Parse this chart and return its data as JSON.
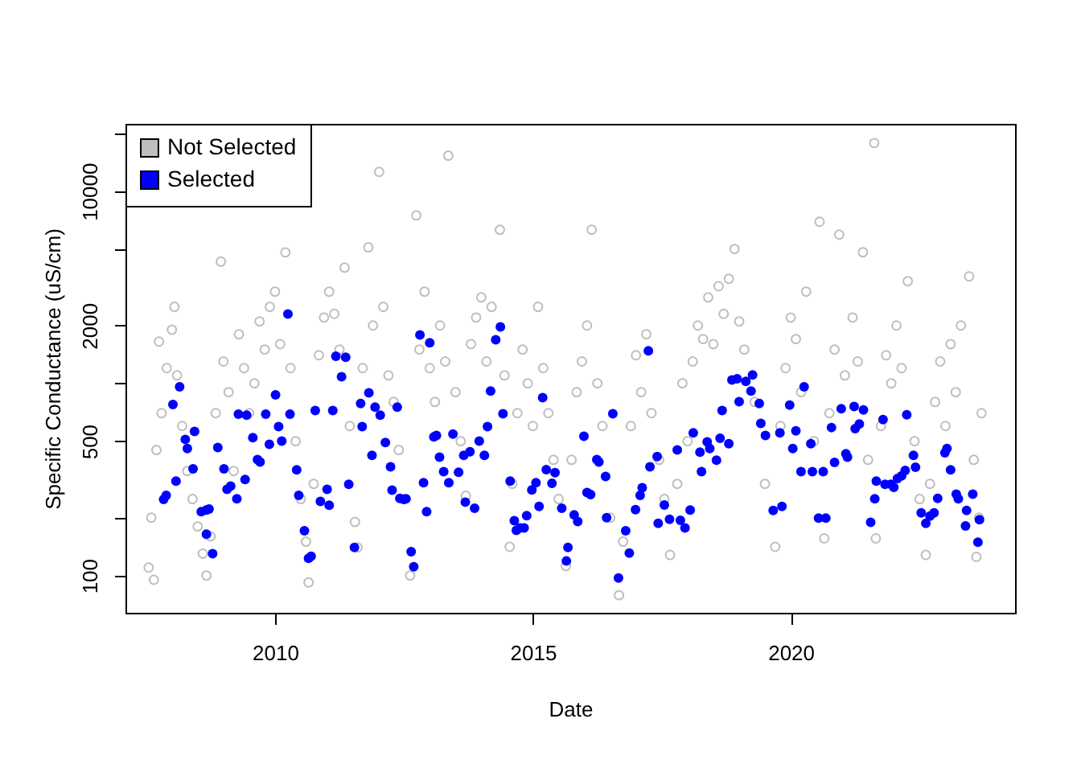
{
  "chart_data": {
    "type": "scatter",
    "xlabel": "Date",
    "ylabel": "Specific Conductance (uS/cm)",
    "log": "y",
    "xlim": [
      2007.1,
      2024.35
    ],
    "xticks": [
      2010,
      2015,
      2020
    ],
    "ylim": [
      64,
      22400
    ],
    "yticks": [
      100,
      {
        "value": 200,
        "label": null
      },
      500,
      {
        "value": 1000,
        "label": null
      },
      2000,
      {
        "value": 5000,
        "label": null
      },
      10000,
      {
        "value": 20000,
        "label": null
      }
    ],
    "grid": false,
    "legend": "top left",
    "marker": "circle",
    "series": [
      {
        "name": "Not Selected",
        "color": "#bebebe",
        "x": [
          2007.55,
          2007.6,
          2007.65,
          2007.7,
          2007.75,
          2007.8,
          2007.9,
          2008.0,
          2008.05,
          2008.1,
          2008.2,
          2008.3,
          2008.4,
          2008.5,
          2008.6,
          2008.67,
          2008.75,
          2008.85,
          2008.95,
          2009.0,
          2009.1,
          2009.2,
          2009.3,
          2009.4,
          2009.5,
          2009.6,
          2009.7,
          2009.8,
          2009.9,
          2010.0,
          2010.1,
          2010.2,
          2010.3,
          2010.4,
          2010.5,
          2010.6,
          2010.65,
          2010.75,
          2010.85,
          2010.95,
          2011.05,
          2011.15,
          2011.25,
          2011.35,
          2011.45,
          2011.55,
          2011.6,
          2011.7,
          2011.81,
          2011.9,
          2012.02,
          2012.1,
          2012.2,
          2012.3,
          2012.4,
          2012.5,
          2012.62,
          2012.74,
          2012.8,
          2012.9,
          2013.0,
          2013.1,
          2013.2,
          2013.3,
          2013.36,
          2013.5,
          2013.6,
          2013.7,
          2013.8,
          2013.9,
          2014.0,
          2014.1,
          2014.2,
          2014.36,
          2014.45,
          2014.55,
          2014.6,
          2014.7,
          2014.8,
          2014.9,
          2015.0,
          2015.1,
          2015.2,
          2015.3,
          2015.4,
          2015.5,
          2015.64,
          2015.75,
          2015.85,
          2015.95,
          2016.05,
          2016.14,
          2016.25,
          2016.35,
          2016.5,
          2016.67,
          2016.75,
          2016.9,
          2017.0,
          2017.1,
          2017.2,
          2017.3,
          2017.45,
          2017.55,
          2017.66,
          2017.8,
          2017.9,
          2018.0,
          2018.1,
          2018.2,
          2018.3,
          2018.4,
          2018.5,
          2018.6,
          2018.7,
          2018.8,
          2018.91,
          2019.0,
          2019.1,
          2019.3,
          2019.5,
          2019.7,
          2019.8,
          2019.9,
          2020.0,
          2020.1,
          2020.2,
          2020.3,
          2020.45,
          2020.56,
          2020.65,
          2020.75,
          2020.85,
          2020.94,
          2021.05,
          2021.2,
          2021.3,
          2021.4,
          2021.5,
          2021.62,
          2021.65,
          2021.75,
          2021.85,
          2021.95,
          2022.05,
          2022.15,
          2022.27,
          2022.4,
          2022.5,
          2022.62,
          2022.7,
          2022.8,
          2022.9,
          2023.0,
          2023.1,
          2023.2,
          2023.3,
          2023.46,
          2023.55,
          2023.6,
          2023.65,
          2023.7
        ],
        "values": [
          110,
          200,
          95,
          450,
          1650,
          700,
          1200,
          1900,
          2500,
          1100,
          600,
          350,
          250,
          180,
          130,
          100,
          160,
          700,
          4300,
          1300,
          900,
          350,
          1800,
          1200,
          700,
          1000,
          2100,
          1500,
          2500,
          3000,
          1600,
          4800,
          1200,
          500,
          250,
          150,
          92,
          300,
          1400,
          2200,
          3000,
          2300,
          1500,
          4000,
          600,
          190,
          140,
          1200,
          5100,
          2000,
          12600,
          2500,
          1100,
          800,
          450,
          250,
          100,
          7480,
          1500,
          3000,
          1200,
          800,
          2000,
          1300,
          15300,
          900,
          500,
          260,
          1600,
          2200,
          2800,
          1300,
          2500,
          6300,
          1100,
          141,
          300,
          700,
          1500,
          1000,
          600,
          2500,
          1200,
          700,
          400,
          250,
          112,
          400,
          900,
          1300,
          2000,
          6300,
          1000,
          600,
          200,
          79,
          150,
          600,
          1400,
          900,
          1800,
          700,
          400,
          250,
          128,
          300,
          1000,
          500,
          1300,
          2000,
          1700,
          2800,
          1600,
          3200,
          2300,
          3500,
          5000,
          2100,
          1500,
          800,
          300,
          141,
          600,
          1200,
          2200,
          1700,
          900,
          3000,
          500,
          6930,
          156,
          700,
          1500,
          5940,
          1100,
          2200,
          1300,
          4810,
          400,
          17800,
          156,
          600,
          1400,
          1000,
          2000,
          1200,
          3400,
          500,
          250,
          128,
          300,
          800,
          1300,
          600,
          1600,
          900,
          2000,
          3600,
          400,
          125,
          200,
          700
        ]
      },
      {
        "name": "Selected",
        "color": "#0000ff",
        "x": [
          2007.84,
          2007.89,
          2008.02,
          2008.15,
          2008.08,
          2008.26,
          2008.3,
          2008.44,
          2008.41,
          2008.57,
          2008.67,
          2008.72,
          2008.67,
          2008.79,
          2008.89,
          2009.01,
          2009.07,
          2009.14,
          2009.26,
          2009.29,
          2009.45,
          2009.57,
          2009.66,
          2009.71,
          2009.42,
          2009.82,
          2009.89,
          2010.01,
          2010.07,
          2010.13,
          2010.29,
          2010.25,
          2010.42,
          2010.46,
          2010.57,
          2010.65,
          2010.7,
          2010.78,
          2010.88,
          2011.01,
          2011.05,
          2011.12,
          2011.18,
          2011.37,
          2011.29,
          2011.43,
          2011.54,
          2011.66,
          2011.69,
          2011.82,
          2011.88,
          2011.94,
          2012.04,
          2012.14,
          2012.24,
          2012.37,
          2012.27,
          2012.42,
          2012.5,
          2012.54,
          2012.64,
          2012.69,
          2012.81,
          2013.0,
          2012.88,
          2012.94,
          2013.08,
          2013.13,
          2013.19,
          2013.27,
          2013.37,
          2013.45,
          2013.56,
          2013.69,
          2013.66,
          2013.78,
          2013.87,
          2013.96,
          2014.06,
          2014.12,
          2014.18,
          2014.28,
          2014.37,
          2014.42,
          2014.56,
          2014.64,
          2014.68,
          2014.75,
          2014.83,
          2014.88,
          2014.98,
          2015.06,
          2015.12,
          2015.19,
          2015.26,
          2015.37,
          2015.43,
          2015.56,
          2015.68,
          2015.65,
          2015.8,
          2015.87,
          2015.99,
          2016.05,
          2016.12,
          2016.24,
          2016.28,
          2016.41,
          2016.43,
          2016.55,
          2016.8,
          2016.87,
          2016.66,
          2016.99,
          2017.08,
          2017.12,
          2017.24,
          2017.27,
          2017.41,
          2017.43,
          2017.55,
          2017.65,
          2017.8,
          2017.86,
          2017.95,
          2018.05,
          2018.11,
          2018.24,
          2018.27,
          2018.38,
          2018.43,
          2018.56,
          2018.63,
          2018.67,
          2018.8,
          2018.86,
          2018.96,
          2019.0,
          2019.13,
          2019.26,
          2019.23,
          2019.39,
          2019.42,
          2019.51,
          2019.66,
          2019.83,
          2019.79,
          2019.98,
          2020.04,
          2020.1,
          2020.26,
          2020.2,
          2020.39,
          2020.42,
          2020.63,
          2020.54,
          2020.68,
          2020.79,
          2020.85,
          2020.98,
          2021.07,
          2021.1,
          2021.23,
          2021.25,
          2021.33,
          2021.41,
          2021.63,
          2021.55,
          2021.66,
          2021.79,
          2021.83,
          2021.94,
          2022.0,
          2022.07,
          2022.15,
          2022.25,
          2022.22,
          2022.38,
          2022.42,
          2022.53,
          2022.62,
          2022.7,
          2022.78,
          2022.85,
          2022.99,
          2023.03,
          2023.1,
          2023.21,
          2023.25,
          2023.41,
          2023.39,
          2023.53,
          2023.66,
          2023.63
        ],
        "values": [
          249,
          261,
          776,
          960,
          310,
          511,
          458,
          562,
          359,
          215,
          219,
          222,
          164,
          130,
          464,
          359,
          281,
          292,
          251,
          692,
          683,
          521,
          401,
          390,
          316,
          692,
          482,
          871,
          596,
          501,
          692,
          2296,
          355,
          261,
          171,
          123,
          126,
          722,
          243,
          281,
          232,
          722,
          1384,
          1366,
          1083,
          298,
          140,
          786,
          596,
          893,
          422,
          752,
          683,
          492,
          368,
          752,
          278,
          252,
          249,
          251,
          133,
          111,
          1787,
          1624,
          304,
          215,
          527,
          535,
          413,
          347,
          304,
          545,
          345,
          241,
          422,
          441,
          224,
          501,
          422,
          596,
          912,
          1687,
          1967,
          695,
          310,
          193,
          172,
          177,
          177,
          205,
          279,
          304,
          229,
          843,
          356,
          302,
          343,
          224,
          140,
          119,
          207,
          191,
          531,
          270,
          264,
          401,
          390,
          328,
          200,
          695,
          171,
          131,
          97,
          220,
          261,
          286,
          1476,
          368,
          416,
          187,
          233,
          196,
          450,
          194,
          177,
          219,
          552,
          439,
          347,
          496,
          458,
          398,
          518,
          722,
          485,
          1042,
          1057,
          802,
          1023,
          1105,
          912,
          786,
          619,
          535,
          218,
          229,
          552,
          771,
          458,
          566,
          960,
          347,
          485,
          347,
          347,
          199,
          199,
          589,
          388,
          738,
          430,
          413,
          757,
          581,
          615,
          728,
          251,
          189,
          310,
          648,
          298,
          298,
          288,
          320,
          330,
          687,
          352,
          422,
          366,
          212,
          187,
          204,
          212,
          252,
          435,
          458,
          355,
          265,
          251,
          218,
          181,
          265,
          195,
          149
        ]
      }
    ]
  }
}
